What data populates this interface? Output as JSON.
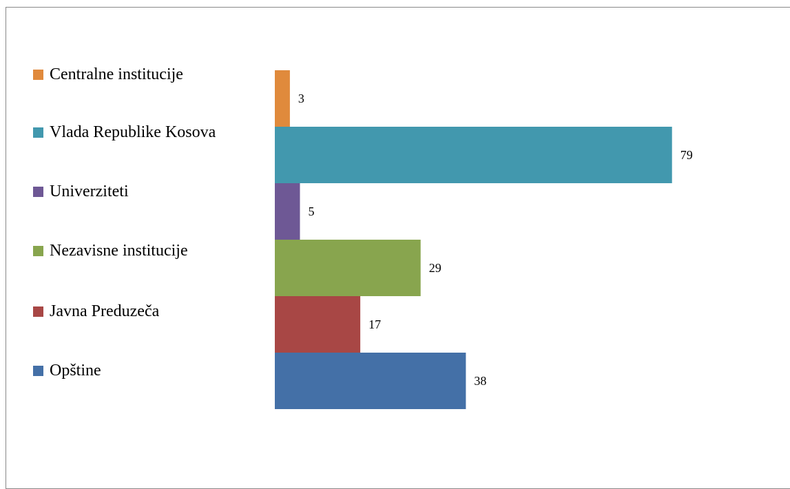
{
  "chart_data": {
    "type": "bar",
    "orientation": "horizontal",
    "series": [
      {
        "name": "Centralne institucije",
        "color": "#e08a3c",
        "values": [
          3
        ]
      },
      {
        "name": "Vlada Republike Kosova",
        "color": "#4298ae",
        "values": [
          79
        ]
      },
      {
        "name": "Univerziteti",
        "color": "#6e5895",
        "values": [
          5
        ]
      },
      {
        "name": "Nezavisne institucije",
        "color": "#88a54e",
        "values": [
          29
        ]
      },
      {
        "name": "Javna Preduzeča",
        "color": "#a84745",
        "values": [
          17
        ]
      },
      {
        "name": "Opštine",
        "color": "#4470a7",
        "values": [
          38
        ]
      }
    ],
    "legend": "left"
  }
}
